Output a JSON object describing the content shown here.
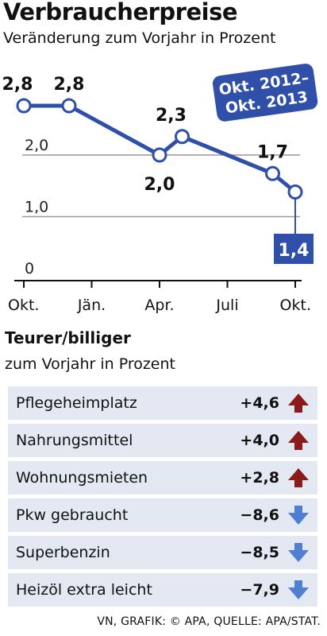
{
  "title": "Verbraucherpreise",
  "subtitle": "Veränderung zum Vorjahr in Prozent",
  "chart_data": {
    "type": "line",
    "title": "Verbraucherpreise",
    "subtitle": "Veränderung zum Vorjahr in Prozent",
    "period_label_line1": "Okt. 2012–",
    "period_label_line2": "Okt. 2013",
    "x_tick_labels": [
      "Okt.",
      "Jän.",
      "Apr.",
      "Juli",
      "Okt."
    ],
    "y_tick_labels": [
      "0",
      "1,0",
      "2,0"
    ],
    "ylim": [
      0,
      2.8
    ],
    "grid": true,
    "series": [
      {
        "x_month_index": [
          0,
          2,
          6,
          7,
          11,
          12
        ],
        "values": [
          2.8,
          2.8,
          2.0,
          2.3,
          1.7,
          1.4
        ],
        "labels": [
          "2,8",
          "2,8",
          "2,0",
          "2,3",
          "1,7",
          "1,4"
        ]
      }
    ],
    "colors": {
      "line": "#2f4fa8",
      "highlight": "#2f4fa8",
      "grid": "#999999"
    }
  },
  "section": {
    "title": "Teurer/billiger",
    "subtitle": "zum Vorjahr in Prozent"
  },
  "items": [
    {
      "name": "Pflegeheimplatz",
      "value": "+4,6",
      "direction": "up"
    },
    {
      "name": "Nahrungsmittel",
      "value": "+4,0",
      "direction": "up"
    },
    {
      "name": "Wohnungsmieten",
      "value": "+2,8",
      "direction": "up"
    },
    {
      "name": "Pkw gebraucht",
      "value": "−8,6",
      "direction": "down"
    },
    {
      "name": "Superbenzin",
      "value": "−8,5",
      "direction": "down"
    },
    {
      "name": "Heizöl extra leicht",
      "value": "−7,9",
      "direction": "down"
    }
  ],
  "arrow_colors": {
    "up": "#8b1a1a",
    "down": "#4f7fd0"
  },
  "footer": "VN, GRAFIK: © APA, QUELLE: APA/STAT."
}
